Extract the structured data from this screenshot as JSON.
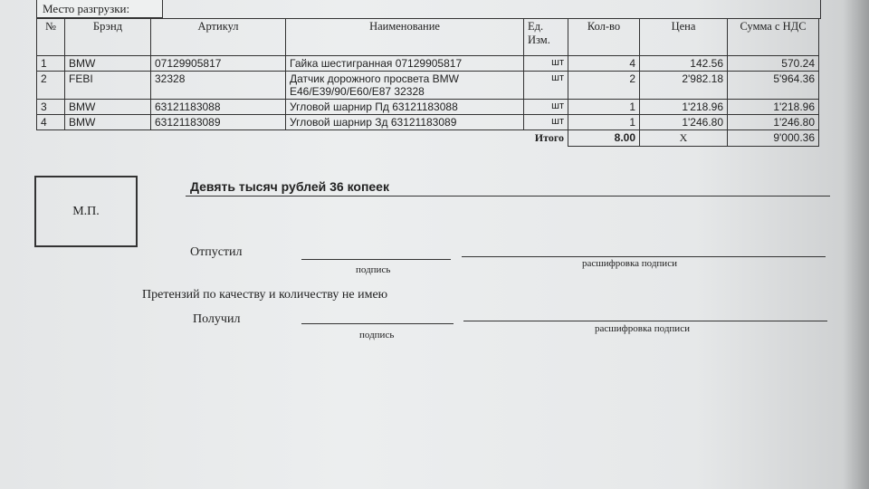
{
  "header": {
    "unload_place_label": "Место разгрузки:"
  },
  "table": {
    "columns": [
      "№",
      "Брэнд",
      "Артикул",
      "Наименование",
      "Ед. Изм.",
      "Кол-во",
      "Цена",
      "Сумма с НДС"
    ],
    "rows": [
      {
        "n": "1",
        "brand": "BMW",
        "article": "07129905817",
        "name": "Гайка шестигранная 07129905817",
        "unit": "шт",
        "qty": "4",
        "price": "142.56",
        "sum": "570.24"
      },
      {
        "n": "2",
        "brand": "FEBI",
        "article": "32328",
        "name": "Датчик дорожного просвета BMW E46/E39/90/E60/E87 32328",
        "unit": "шт",
        "qty": "2",
        "price": "2'982.18",
        "sum": "5'964.36"
      },
      {
        "n": "3",
        "brand": "BMW",
        "article": "63121183088",
        "name": "Угловой шарнир Пд 63121183088",
        "unit": "шт",
        "qty": "1",
        "price": "1'218.96",
        "sum": "1'218.96"
      },
      {
        "n": "4",
        "brand": "BMW",
        "article": "63121183089",
        "name": "Угловой шарнир Зд 63121183089",
        "unit": "шт",
        "qty": "1",
        "price": "1'246.80",
        "sum": "1'246.80"
      }
    ],
    "total": {
      "label": "Итого",
      "qty": "8.00",
      "price": "X",
      "sum": "9'000.36"
    }
  },
  "stamp_label": "М.П.",
  "amount_words": "Девять тысяч рублей 36 копеек",
  "released": {
    "label": "Отпустил",
    "signature": "подпись",
    "decode": "расшифровка подписи"
  },
  "claims_text": "Претензий по качеству и количеству не имею",
  "received": {
    "label": "Получил",
    "signature": "подпись",
    "decode": "расшифровка подписи"
  }
}
